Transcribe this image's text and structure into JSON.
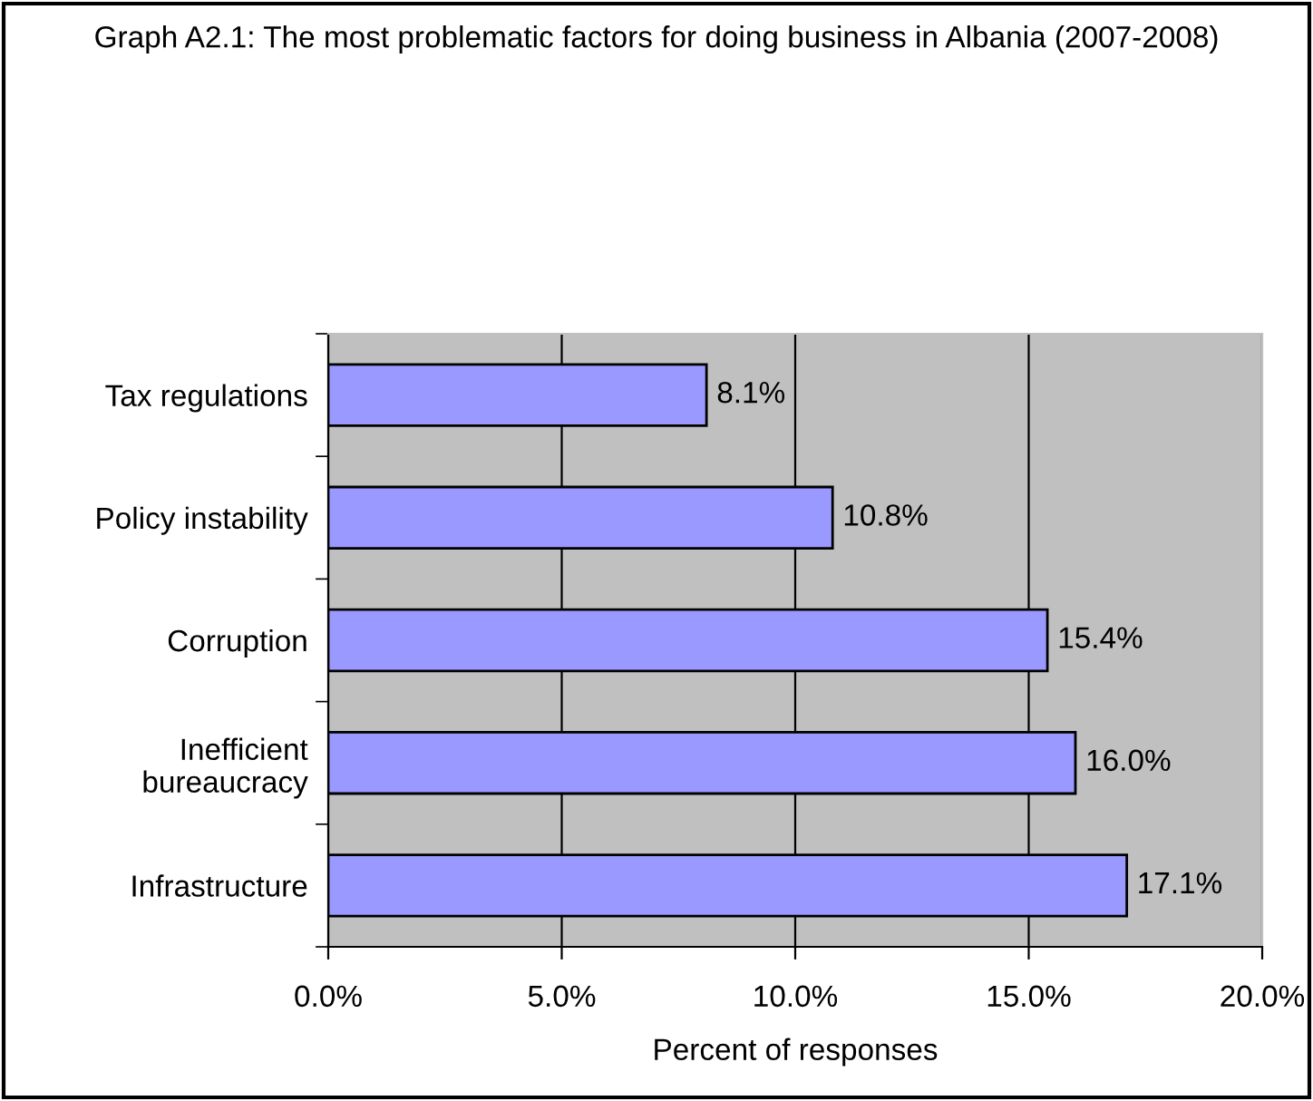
{
  "chart_data": {
    "type": "bar",
    "orientation": "horizontal",
    "title": "Graph A2.1: The most problematic factors for doing business in Albania (2007-2008)",
    "xlabel": "Percent of responses",
    "categories": [
      "Tax regulations",
      "Policy instability",
      "Corruption",
      "Inefficient\nbureaucracy",
      "Infrastructure"
    ],
    "values": [
      8.1,
      10.8,
      15.4,
      16.0,
      17.1
    ],
    "value_labels": [
      "8.1%",
      "10.8%",
      "15.4%",
      "16.0%",
      "17.1%"
    ],
    "color": "#9999ff",
    "xlim": [
      0,
      20
    ],
    "xticks": [
      {
        "value": 0,
        "label": "0.0%"
      },
      {
        "value": 5,
        "label": "5.0%"
      },
      {
        "value": 10,
        "label": "10.0%"
      },
      {
        "value": 15,
        "label": "15.0%"
      },
      {
        "value": 20,
        "label": "20.0%"
      }
    ],
    "grid": "x",
    "legend": false
  }
}
